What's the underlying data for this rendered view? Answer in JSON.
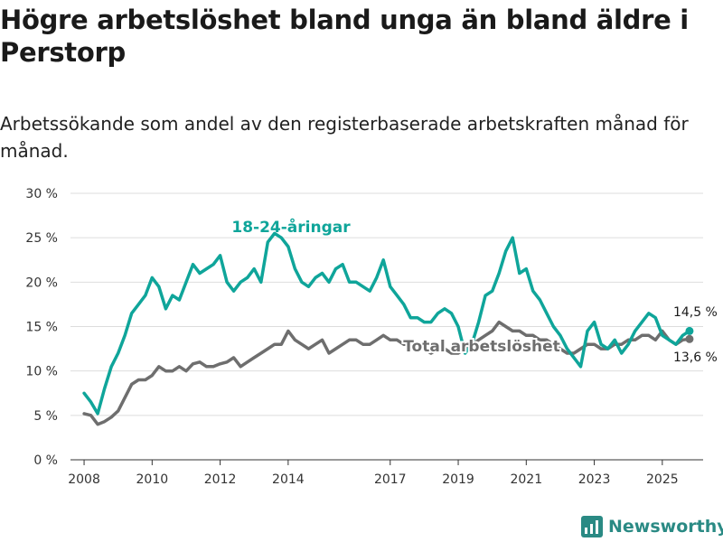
{
  "title": "Högre arbetslöshet bland unga än bland äldre i Perstorp",
  "subtitle": "Arbetssökande som andel av den registerbaserade arbetskraften månad för månad.",
  "brand": "Newsworthy",
  "colors": {
    "youth": "#0fa59a",
    "total": "#6e6e6e",
    "grid": "#dddddd",
    "brand": "#2a8a84"
  },
  "chart_data": {
    "type": "line",
    "title": "Högre arbetslöshet bland unga än bland äldre i Perstorp",
    "xlabel": "",
    "ylabel": "",
    "xlim": [
      2007.6,
      2026.2
    ],
    "ylim": [
      0,
      30
    ],
    "yticks": [
      0,
      5,
      10,
      15,
      20,
      25,
      30
    ],
    "ytick_labels": [
      "0 %",
      "5 %",
      "10 %",
      "15 %",
      "20 %",
      "25 %",
      "30 %"
    ],
    "xticks": [
      2008,
      2010,
      2012,
      2014,
      2017,
      2019,
      2021,
      2023,
      2025
    ],
    "xtick_labels": [
      "2008",
      "2010",
      "2012",
      "2014",
      "2017",
      "2019",
      "2021",
      "2023",
      "2025"
    ],
    "grid": true,
    "series": [
      {
        "name": "18-24-åringar",
        "label": "18-24-åringar",
        "end_label": "14,5 %",
        "color": "#0fa59a",
        "x": [
          2008.0,
          2008.2,
          2008.4,
          2008.6,
          2008.8,
          2009.0,
          2009.2,
          2009.4,
          2009.6,
          2009.8,
          2010.0,
          2010.2,
          2010.4,
          2010.6,
          2010.8,
          2011.0,
          2011.2,
          2011.4,
          2011.6,
          2011.8,
          2012.0,
          2012.2,
          2012.4,
          2012.6,
          2012.8,
          2013.0,
          2013.2,
          2013.4,
          2013.6,
          2013.8,
          2014.0,
          2014.2,
          2014.4,
          2014.6,
          2014.8,
          2015.0,
          2015.2,
          2015.4,
          2015.6,
          2015.8,
          2016.0,
          2016.2,
          2016.4,
          2016.6,
          2016.8,
          2017.0,
          2017.2,
          2017.4,
          2017.6,
          2017.8,
          2018.0,
          2018.2,
          2018.4,
          2018.6,
          2018.8,
          2019.0,
          2019.2,
          2019.4,
          2019.6,
          2019.8,
          2020.0,
          2020.2,
          2020.4,
          2020.6,
          2020.8,
          2021.0,
          2021.2,
          2021.4,
          2021.6,
          2021.8,
          2022.0,
          2022.2,
          2022.4,
          2022.6,
          2022.8,
          2023.0,
          2023.2,
          2023.4,
          2023.6,
          2023.8,
          2024.0,
          2024.2,
          2024.4,
          2024.6,
          2024.8,
          2025.0,
          2025.2,
          2025.4,
          2025.6,
          2025.8
        ],
        "values": [
          7.5,
          6.5,
          5.2,
          8.0,
          10.5,
          12.0,
          14.0,
          16.5,
          17.5,
          18.5,
          20.5,
          19.5,
          17.0,
          18.5,
          18.0,
          20.0,
          22.0,
          21.0,
          21.5,
          22.0,
          23.0,
          20.0,
          19.0,
          20.0,
          20.5,
          21.5,
          20.0,
          24.5,
          25.5,
          25.0,
          24.0,
          21.5,
          20.0,
          19.5,
          20.5,
          21.0,
          20.0,
          21.5,
          22.0,
          20.0,
          20.0,
          19.5,
          19.0,
          20.5,
          22.5,
          19.5,
          18.5,
          17.5,
          16.0,
          16.0,
          15.5,
          15.5,
          16.5,
          17.0,
          16.5,
          15.0,
          12.0,
          13.0,
          15.5,
          18.5,
          19.0,
          21.0,
          23.5,
          25.0,
          21.0,
          21.5,
          19.0,
          18.0,
          16.5,
          15.0,
          14.0,
          12.5,
          11.5,
          10.5,
          14.5,
          15.5,
          13.0,
          12.5,
          13.5,
          12.0,
          13.0,
          14.5,
          15.5,
          16.5,
          16.0,
          14.0,
          13.5,
          13.0,
          14.0,
          14.5
        ]
      },
      {
        "name": "Total arbetslöshet",
        "label": "Total arbetslöshet",
        "end_label": "13,6 %",
        "color": "#6e6e6e",
        "x": [
          2008.0,
          2008.2,
          2008.4,
          2008.6,
          2008.8,
          2009.0,
          2009.2,
          2009.4,
          2009.6,
          2009.8,
          2010.0,
          2010.2,
          2010.4,
          2010.6,
          2010.8,
          2011.0,
          2011.2,
          2011.4,
          2011.6,
          2011.8,
          2012.0,
          2012.2,
          2012.4,
          2012.6,
          2012.8,
          2013.0,
          2013.2,
          2013.4,
          2013.6,
          2013.8,
          2014.0,
          2014.2,
          2014.4,
          2014.6,
          2014.8,
          2015.0,
          2015.2,
          2015.4,
          2015.6,
          2015.8,
          2016.0,
          2016.2,
          2016.4,
          2016.6,
          2016.8,
          2017.0,
          2017.2,
          2017.4,
          2017.6,
          2017.8,
          2018.0,
          2018.2,
          2018.4,
          2018.6,
          2018.8,
          2019.0,
          2019.2,
          2019.4,
          2019.6,
          2019.8,
          2020.0,
          2020.2,
          2020.4,
          2020.6,
          2020.8,
          2021.0,
          2021.2,
          2021.4,
          2021.6,
          2021.8,
          2022.0,
          2022.2,
          2022.4,
          2022.6,
          2022.8,
          2023.0,
          2023.2,
          2023.4,
          2023.6,
          2023.8,
          2024.0,
          2024.2,
          2024.4,
          2024.6,
          2024.8,
          2025.0,
          2025.2,
          2025.4,
          2025.6,
          2025.8
        ],
        "values": [
          5.2,
          5.0,
          4.0,
          4.3,
          4.8,
          5.5,
          7.0,
          8.5,
          9.0,
          9.0,
          9.5,
          10.5,
          10.0,
          10.0,
          10.5,
          10.0,
          10.8,
          11.0,
          10.5,
          10.5,
          10.8,
          11.0,
          11.5,
          10.5,
          11.0,
          11.5,
          12.0,
          12.5,
          13.0,
          13.0,
          14.5,
          13.5,
          13.0,
          12.5,
          13.0,
          13.5,
          12.0,
          12.5,
          13.0,
          13.5,
          13.5,
          13.0,
          13.0,
          13.5,
          14.0,
          13.5,
          13.5,
          13.0,
          13.0,
          12.5,
          12.5,
          12.0,
          12.5,
          12.5,
          12.0,
          12.0,
          12.5,
          13.0,
          13.5,
          14.0,
          14.5,
          15.5,
          15.0,
          14.5,
          14.5,
          14.0,
          14.0,
          13.5,
          13.5,
          13.0,
          12.5,
          12.0,
          12.0,
          12.5,
          13.0,
          13.0,
          12.5,
          12.5,
          13.0,
          13.0,
          13.5,
          13.5,
          14.0,
          14.0,
          13.5,
          14.5,
          13.5,
          13.0,
          13.5,
          13.6
        ]
      }
    ]
  }
}
